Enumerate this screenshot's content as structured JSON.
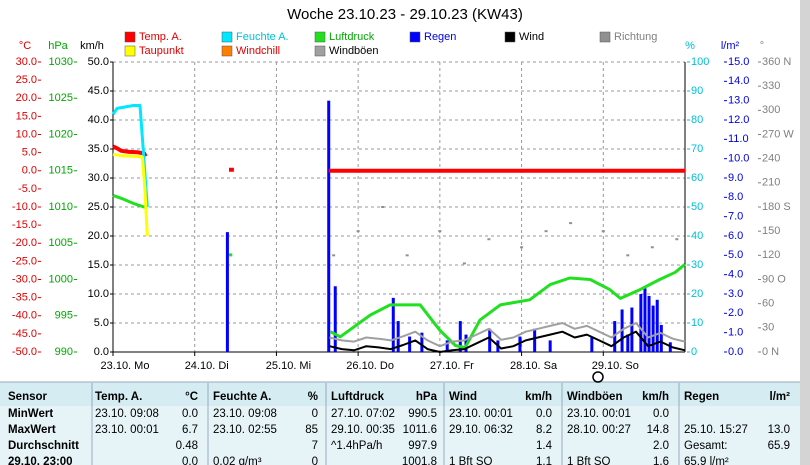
{
  "chart_data": {
    "type": "line",
    "title": "Woche 23.10.23 - 29.10.23 (KW43)",
    "xlim": [
      0,
      7
    ],
    "xticks": [
      {
        "value": 0,
        "label": "23.10. Mo"
      },
      {
        "value": 1,
        "label": "24.10. Di"
      },
      {
        "value": 2,
        "label": "25.10. Mi"
      },
      {
        "value": 3,
        "label": "26.10. Do"
      },
      {
        "value": 4,
        "label": "27.10. Fr"
      },
      {
        "value": 5,
        "label": "28.10. Sa"
      },
      {
        "value": 6,
        "label": "29.10. So"
      }
    ],
    "grid": true,
    "axes": [
      {
        "label": "°C",
        "color": "#e00000",
        "side": "left",
        "lim": [
          -50,
          30
        ],
        "ticks": [
          {
            "value": 30,
            "label": "30.0"
          },
          {
            "value": 25,
            "label": "25.0"
          },
          {
            "value": 20,
            "label": "20.0"
          },
          {
            "value": 15,
            "label": "15.0"
          },
          {
            "value": 10,
            "label": "10.0"
          },
          {
            "value": 5,
            "label": "5.0"
          },
          {
            "value": 0,
            "label": "0.0"
          },
          {
            "value": -5,
            "label": "-5.0"
          },
          {
            "value": -10,
            "label": "-10.0"
          },
          {
            "value": -15,
            "label": "-15.0"
          },
          {
            "value": -20,
            "label": "-20.0"
          },
          {
            "value": -25,
            "label": "-25.0"
          },
          {
            "value": -30,
            "label": "-30.0"
          },
          {
            "value": -35,
            "label": "-35.0"
          },
          {
            "value": -40,
            "label": "-40.0"
          },
          {
            "value": -45,
            "label": "-45.0"
          },
          {
            "value": -50,
            "label": "-50.0"
          }
        ]
      },
      {
        "label": "hPa",
        "color": "#00a800",
        "side": "left",
        "lim": [
          990,
          1030
        ],
        "ticks": [
          1030,
          1025,
          1020,
          1015,
          1010,
          1005,
          1000,
          995,
          990
        ]
      },
      {
        "label": "km/h",
        "color": "#000000",
        "side": "left",
        "lim": [
          0,
          50
        ],
        "ticks": [
          {
            "value": 50,
            "label": "50.0"
          },
          {
            "value": 45,
            "label": "45.0"
          },
          {
            "value": 40,
            "label": "40.0"
          },
          {
            "value": 35,
            "label": "35.0"
          },
          {
            "value": 30,
            "label": "30.0"
          },
          {
            "value": 25,
            "label": "25.0"
          },
          {
            "value": 20,
            "label": "20.0"
          },
          {
            "value": 15,
            "label": "15.0"
          },
          {
            "value": 10,
            "label": "10.0"
          },
          {
            "value": 5,
            "label": "5.0"
          },
          {
            "value": 0,
            "label": "0.0"
          }
        ]
      },
      {
        "label": "%",
        "color": "#00c0d8",
        "side": "right",
        "lim": [
          0,
          100
        ],
        "ticks": [
          100,
          90,
          80,
          70,
          60,
          50,
          40,
          30,
          20,
          10,
          0
        ]
      },
      {
        "label": "l/m²",
        "color": "#0000e0",
        "side": "right",
        "lim": [
          0,
          15
        ],
        "ticks": [
          {
            "value": 15,
            "label": "15.0"
          },
          {
            "value": 14,
            "label": "14.0"
          },
          {
            "value": 13,
            "label": "13.0"
          },
          {
            "value": 12,
            "label": "12.0"
          },
          {
            "value": 11,
            "label": "11.0"
          },
          {
            "value": 10,
            "label": "10.0"
          },
          {
            "value": 9,
            "label": "9.0"
          },
          {
            "value": 8,
            "label": "8.0"
          },
          {
            "value": 7,
            "label": "7.0"
          },
          {
            "value": 6,
            "label": "6.0"
          },
          {
            "value": 5,
            "label": "5.0"
          },
          {
            "value": 4,
            "label": "4.0"
          },
          {
            "value": 3,
            "label": "3.0"
          },
          {
            "value": 2,
            "label": "2.0"
          },
          {
            "value": 1,
            "label": "1.0"
          },
          {
            "value": 0,
            "label": "0.0"
          }
        ]
      },
      {
        "label": "°",
        "color": "#808080",
        "side": "right",
        "lim": [
          0,
          360
        ],
        "ticks": [
          {
            "value": 360,
            "label": "360 N"
          },
          330,
          300,
          {
            "value": 270,
            "label": "270 W"
          },
          240,
          210,
          {
            "value": 180,
            "label": "180 S"
          },
          150,
          120,
          {
            "value": 90,
            "label": "90 O"
          },
          60,
          30,
          {
            "value": 0,
            "label": "0 N"
          }
        ]
      }
    ],
    "series": [
      {
        "name": "Temp. A.",
        "color": "#ff0000",
        "label_color": "#e00000",
        "axis": 0,
        "type": "line",
        "width": 4,
        "x": [
          0,
          0.05,
          0.1,
          0.2,
          0.3,
          0.38,
          0.4,
          1.0,
          1.42,
          1.48,
          2.0,
          2.64,
          7.0
        ],
        "values": [
          6.7,
          6.2,
          5.5,
          5.2,
          5.1,
          4.8,
          4.0,
          null,
          0.3,
          0.3,
          null,
          0.0,
          0.0
        ]
      },
      {
        "name": "Feuchte A.",
        "color": "#00e8ff",
        "label_color": "#00c0d8",
        "axis": 3,
        "type": "line",
        "width": 3,
        "x": [
          0,
          0.05,
          0.25,
          0.33,
          0.37,
          0.42
        ],
        "values": [
          82,
          84,
          85,
          85,
          70,
          50
        ]
      },
      {
        "name": "Luftdruck",
        "color": "#20e020",
        "label_color": "#00a800",
        "axis": 1,
        "type": "line",
        "width": 3,
        "x": [
          0,
          0.1,
          0.25,
          0.38,
          0.42,
          1.0,
          1.42,
          1.46,
          2.0,
          2.66,
          2.78,
          3.15,
          3.39,
          3.76,
          4.0,
          4.19,
          4.31,
          4.49,
          4.74,
          5.1,
          5.35,
          5.59,
          5.84,
          6.08,
          6.21,
          6.45,
          6.69,
          6.88,
          7.0
        ],
        "values": [
          1011.6,
          1011.2,
          1010.5,
          1010.0,
          1010.2,
          null,
          1003.4,
          1003.4,
          null,
          992.8,
          992.1,
          995.1,
          996.5,
          996.5,
          993.0,
          990.9,
          990.6,
          994.4,
          996.5,
          997.2,
          999.3,
          1000.2,
          1000.0,
          998.6,
          997.4,
          998.6,
          1000.0,
          1001.0,
          1002.1
        ]
      },
      {
        "name": "Regen",
        "color": "#0000ff",
        "label_color": "#0000e0",
        "axis": 4,
        "type": "bar",
        "x": [
          1.4,
          2.64,
          2.72,
          3.43,
          3.49,
          3.63,
          3.78,
          4.09,
          4.25,
          4.32,
          4.61,
          4.71,
          4.98,
          5.16,
          5.35,
          5.86,
          6.14,
          6.23,
          6.3,
          6.35,
          6.46,
          6.51,
          6.56,
          6.61,
          6.66,
          6.71,
          6.82
        ],
        "values": [
          6.2,
          13.0,
          3.4,
          2.8,
          1.6,
          0.8,
          1.0,
          0.6,
          1.6,
          0.9,
          1.2,
          0.6,
          0.8,
          1.2,
          0.6,
          0.8,
          1.6,
          2.2,
          0.9,
          2.3,
          3.0,
          3.3,
          2.9,
          2.4,
          2.7,
          1.4,
          0.5
        ]
      },
      {
        "name": "Wind",
        "color": "#000000",
        "label_color": "#000000",
        "axis": 2,
        "type": "line",
        "width": 2,
        "x": [
          2.65,
          2.8,
          2.95,
          3.1,
          3.25,
          3.4,
          3.55,
          3.7,
          3.85,
          4.0,
          4.15,
          4.3,
          4.45,
          4.6,
          4.75,
          4.9,
          5.05,
          5.2,
          5.35,
          5.5,
          5.65,
          5.8,
          5.95,
          6.1,
          6.25,
          6.4,
          6.55,
          6.7,
          6.85,
          7.0
        ],
        "values": [
          1.0,
          0.5,
          0.3,
          1.0,
          0.8,
          0.5,
          1.2,
          2.0,
          0.5,
          0.0,
          0.3,
          0.5,
          1.5,
          2.5,
          0.6,
          1.0,
          2.0,
          2.5,
          3.0,
          3.5,
          2.5,
          3.0,
          2.0,
          1.0,
          2.5,
          3.5,
          1.0,
          1.8,
          0.8,
          0.3
        ]
      },
      {
        "name": "Richtung",
        "color": "#909090",
        "label_color": "#808080",
        "axis": 5,
        "type": "dots",
        "x": [
          2.7,
          3.0,
          3.3,
          3.6,
          4.0,
          4.3,
          4.6,
          5.0,
          5.3,
          5.6,
          6.0,
          6.3,
          6.6,
          6.9
        ],
        "values": [
          120,
          150,
          180,
          120,
          150,
          110,
          140,
          130,
          150,
          160,
          150,
          120,
          130,
          140
        ]
      },
      {
        "name": "Taupunkt",
        "color": "#ffff00",
        "label_color": "#e00000",
        "axis": 0,
        "type": "line",
        "width": 3,
        "x": [
          0,
          0.1,
          0.25,
          0.36,
          0.39,
          0.42
        ],
        "values": [
          4.5,
          4.2,
          4.0,
          3.8,
          -5,
          -18
        ]
      },
      {
        "name": "Windchill",
        "color": "#ff8000",
        "label_color": "#e00000",
        "axis": 0,
        "type": "line",
        "width": 2,
        "x": [],
        "values": []
      },
      {
        "name": "Windböen",
        "color": "#a0a0a0",
        "label_color": "#000000",
        "axis": 2,
        "type": "line",
        "width": 2,
        "x": [
          2.65,
          2.8,
          2.95,
          3.1,
          3.25,
          3.4,
          3.55,
          3.7,
          3.85,
          4.0,
          4.15,
          4.3,
          4.45,
          4.6,
          4.75,
          4.9,
          5.05,
          5.2,
          5.35,
          5.5,
          5.65,
          5.8,
          5.95,
          6.1,
          6.25,
          6.4,
          6.55,
          6.7,
          6.85,
          7.0
        ],
        "values": [
          2.5,
          2.0,
          1.8,
          2.5,
          2.3,
          2.0,
          2.7,
          3.5,
          2.0,
          1.0,
          1.8,
          2.0,
          3.0,
          4.0,
          2.1,
          2.5,
          3.5,
          4.0,
          4.5,
          5.0,
          4.0,
          4.5,
          3.5,
          2.5,
          4.0,
          5.0,
          2.5,
          3.3,
          2.3,
          1.8
        ]
      }
    ]
  },
  "table": {
    "header": [
      "Sensor",
      "Temp. A.",
      "°C",
      "Feuchte A.",
      "%",
      "Luftdruck",
      "hPa",
      "Wind",
      "km/h",
      "Windböen",
      "km/h",
      "Regen",
      "l/m²"
    ],
    "rows": [
      [
        "MinWert",
        "23.10.  09:08",
        "0.0",
        "23.10.  09:08",
        "0",
        "27.10.  07:02",
        "990.5",
        "23.10.  00:01",
        "0.0",
        "23.10.  00:01",
        "0.0",
        null,
        null
      ],
      [
        "MaxWert",
        "23.10.  00:01",
        "6.7",
        "23.10.  02:55",
        "85",
        "29.10.  00:35",
        "1011.6",
        "29.10.  06:32",
        "8.2",
        "28.10.  00:27",
        "14.8",
        "25.10.  15:27",
        "13.0"
      ],
      [
        "Durchschnitt",
        null,
        "0.48",
        null,
        "7",
        "^1.4hPa/h",
        "997.9",
        null,
        "1.4",
        null,
        "2.0",
        "Gesamt:",
        "65.9"
      ],
      [
        "29.10. 23:00",
        null,
        "0.0",
        "0.02 g/m³",
        "0",
        null,
        "1001.8",
        "1 Bft SO",
        "1.1",
        "1 Bft SO",
        "1.6",
        "65.9 l/m²",
        null
      ]
    ]
  }
}
